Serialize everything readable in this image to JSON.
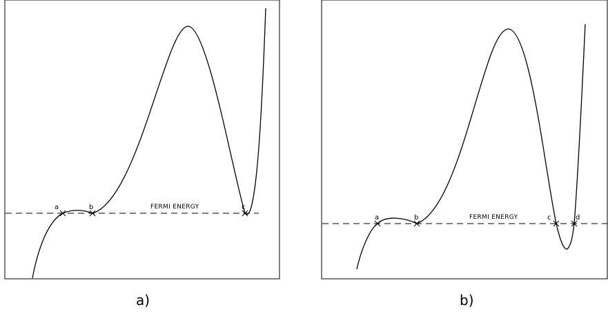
{
  "panels": [
    {
      "caption": "a)",
      "fermi_label": "FERMI ENERGY",
      "points": [
        "a",
        "b",
        "c"
      ]
    },
    {
      "caption": "b)",
      "fermi_label": "FERMI ENERGY",
      "points": [
        "a",
        "b",
        "c",
        "d"
      ]
    }
  ]
}
